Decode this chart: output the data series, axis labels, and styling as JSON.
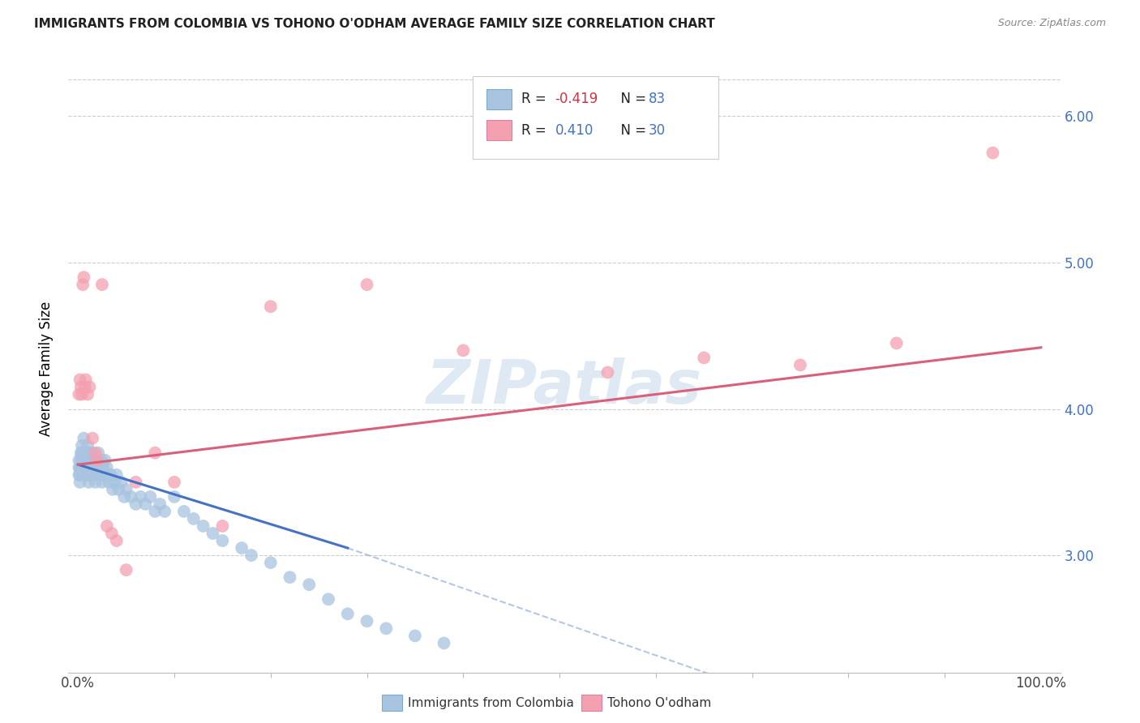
{
  "title": "IMMIGRANTS FROM COLOMBIA VS TOHONO O'ODHAM AVERAGE FAMILY SIZE CORRELATION CHART",
  "source": "Source: ZipAtlas.com",
  "ylabel": "Average Family Size",
  "legend_1_label": "Immigrants from Colombia",
  "legend_2_label": "Tohono O'odham",
  "colombia_color": "#a8c4e0",
  "tohono_color": "#f4a0b0",
  "colombia_line_color": "#4472c4",
  "tohono_line_color": "#d9607a",
  "colombia_r": -0.419,
  "colombia_n": 83,
  "tohono_r": 0.41,
  "tohono_n": 30,
  "ylim": [
    2.2,
    6.35
  ],
  "colombia_seed": 12,
  "tohono_seed": 7,
  "colombia_x": [
    0.001,
    0.001,
    0.001,
    0.002,
    0.002,
    0.002,
    0.003,
    0.003,
    0.003,
    0.004,
    0.004,
    0.005,
    0.005,
    0.005,
    0.006,
    0.006,
    0.007,
    0.007,
    0.008,
    0.008,
    0.009,
    0.009,
    0.01,
    0.01,
    0.01,
    0.011,
    0.011,
    0.012,
    0.012,
    0.013,
    0.013,
    0.014,
    0.015,
    0.015,
    0.016,
    0.017,
    0.018,
    0.018,
    0.019,
    0.02,
    0.021,
    0.022,
    0.023,
    0.024,
    0.025,
    0.026,
    0.027,
    0.028,
    0.03,
    0.032,
    0.034,
    0.036,
    0.038,
    0.04,
    0.042,
    0.045,
    0.048,
    0.05,
    0.055,
    0.06,
    0.065,
    0.07,
    0.075,
    0.08,
    0.085,
    0.09,
    0.1,
    0.11,
    0.12,
    0.13,
    0.14,
    0.15,
    0.17,
    0.18,
    0.2,
    0.22,
    0.24,
    0.26,
    0.28,
    0.3,
    0.32,
    0.35,
    0.38
  ],
  "colombia_y": [
    3.6,
    3.55,
    3.65,
    3.6,
    3.5,
    3.55,
    3.7,
    3.65,
    3.6,
    3.75,
    3.7,
    3.6,
    3.55,
    3.65,
    3.8,
    3.6,
    3.7,
    3.55,
    3.65,
    3.6,
    3.7,
    3.6,
    3.65,
    3.55,
    3.75,
    3.6,
    3.5,
    3.7,
    3.65,
    3.6,
    3.55,
    3.7,
    3.65,
    3.6,
    3.55,
    3.6,
    3.5,
    3.55,
    3.6,
    3.55,
    3.7,
    3.6,
    3.55,
    3.65,
    3.5,
    3.6,
    3.55,
    3.65,
    3.6,
    3.5,
    3.55,
    3.45,
    3.5,
    3.55,
    3.45,
    3.5,
    3.4,
    3.45,
    3.4,
    3.35,
    3.4,
    3.35,
    3.4,
    3.3,
    3.35,
    3.3,
    3.4,
    3.3,
    3.25,
    3.2,
    3.15,
    3.1,
    3.05,
    3.0,
    2.95,
    2.85,
    2.8,
    2.7,
    2.6,
    2.55,
    2.5,
    2.45,
    2.4
  ],
  "tohono_x": [
    0.001,
    0.002,
    0.003,
    0.004,
    0.005,
    0.006,
    0.007,
    0.008,
    0.01,
    0.012,
    0.015,
    0.018,
    0.02,
    0.025,
    0.03,
    0.035,
    0.04,
    0.05,
    0.06,
    0.08,
    0.1,
    0.15,
    0.2,
    0.3,
    0.4,
    0.55,
    0.65,
    0.75,
    0.85,
    0.95
  ],
  "tohono_y": [
    4.1,
    4.2,
    4.15,
    4.1,
    4.85,
    4.9,
    4.15,
    4.2,
    4.1,
    4.15,
    3.8,
    3.7,
    3.65,
    4.85,
    3.2,
    3.15,
    3.1,
    2.9,
    3.5,
    3.7,
    3.5,
    3.2,
    4.7,
    4.85,
    4.4,
    4.25,
    4.35,
    4.3,
    4.45,
    5.75
  ]
}
